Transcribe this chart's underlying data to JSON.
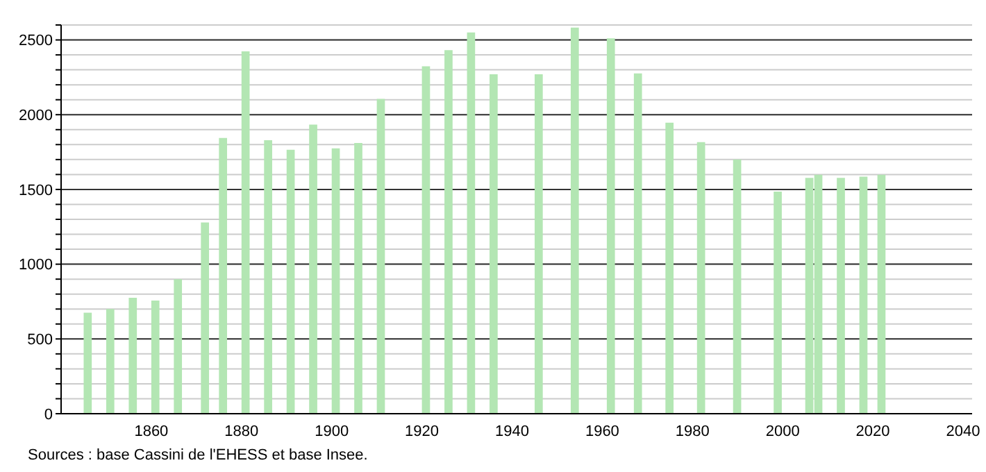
{
  "chart_data": {
    "type": "bar",
    "x": [
      1846,
      1851,
      1856,
      1861,
      1866,
      1872,
      1876,
      1881,
      1886,
      1891,
      1896,
      1901,
      1906,
      1911,
      1921,
      1926,
      1931,
      1936,
      1946,
      1954,
      1962,
      1968,
      1975,
      1982,
      1990,
      1999,
      2006,
      2008,
      2013,
      2018,
      2022
    ],
    "values": [
      675,
      700,
      775,
      757,
      900,
      1279,
      1844,
      2423,
      1829,
      1766,
      1934,
      1775,
      1811,
      2105,
      2324,
      2432,
      2550,
      2270,
      2270,
      2583,
      2511,
      2276,
      1946,
      1817,
      1700,
      1486,
      1577,
      1598,
      1577,
      1586,
      1598
    ],
    "color": "#b3e6b3",
    "xlim": [
      1840,
      2042
    ],
    "xticks": [
      1860,
      1880,
      1900,
      1920,
      1940,
      1960,
      1980,
      2000,
      2020,
      2040
    ],
    "ylim": [
      0,
      2600
    ],
    "yticks": [
      0,
      {
        "value": 100,
        "label": null
      },
      {
        "value": 200,
        "label": null
      },
      {
        "value": 300,
        "label": null
      },
      {
        "value": 400,
        "label": null
      },
      500,
      {
        "value": 600,
        "label": null
      },
      {
        "value": 700,
        "label": null
      },
      {
        "value": 800,
        "label": null
      },
      {
        "value": 900,
        "label": null
      },
      1000,
      {
        "value": 1100,
        "label": null
      },
      {
        "value": 1200,
        "label": null
      },
      {
        "value": 1300,
        "label": null
      },
      {
        "value": 1400,
        "label": null
      },
      1500,
      {
        "value": 1600,
        "label": null
      },
      {
        "value": 1700,
        "label": null
      },
      {
        "value": 1800,
        "label": null
      },
      {
        "value": 1900,
        "label": null
      },
      2000,
      {
        "value": 2100,
        "label": null
      },
      {
        "value": 2200,
        "label": null
      },
      {
        "value": 2300,
        "label": null
      },
      {
        "value": 2400,
        "label": null
      },
      2500,
      {
        "value": 2600,
        "label": null
      }
    ],
    "grid": "y",
    "annotations": [
      "Sources : base Cassini de l'EHESS et base Insee."
    ]
  }
}
